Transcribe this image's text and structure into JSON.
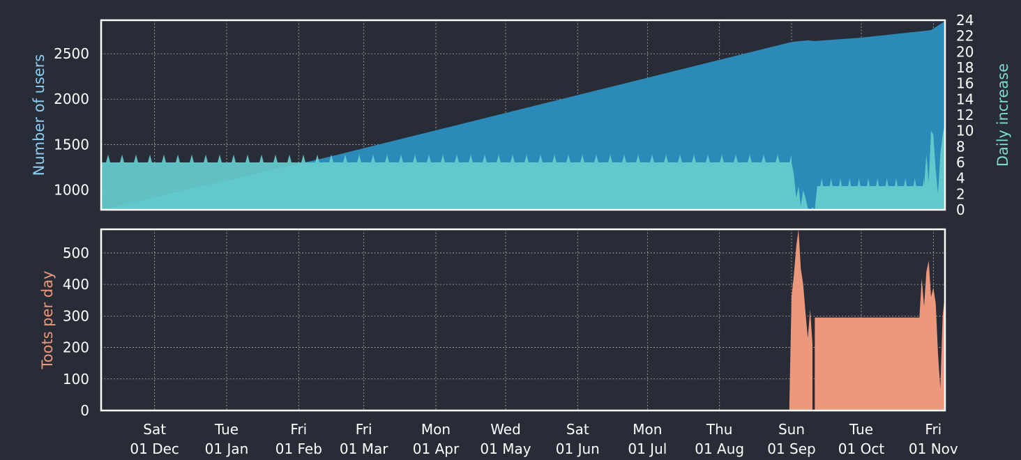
{
  "colors": {
    "background": "#282c37",
    "users": "#2b8ab8",
    "daily_increase": "#66cccc",
    "toots": "#ec987c",
    "users_axis_title": "#8dcdf2",
    "daily_axis_title": "#7ed8d2",
    "toots_axis_title": "#ec987c"
  },
  "chart_data": [
    {
      "type": "area",
      "name": "users-panel",
      "x_start": "2018-11-08",
      "x_end": "2019-11-06",
      "ylabel": "Number of users",
      "ylim": [
        780,
        2870
      ],
      "yticks": [
        1000,
        1500,
        2000,
        2500
      ],
      "y2label": "Daily increase",
      "y2lim": [
        0,
        24
      ],
      "y2ticks": [
        0,
        2,
        4,
        6,
        8,
        10,
        12,
        14,
        16,
        18,
        20,
        22,
        24
      ],
      "grid": true,
      "series": [
        {
          "name": "Number of users",
          "axis": "left",
          "points": [
            [
              "2018-11-08",
              780
            ],
            [
              "2019-02-15",
              1370
            ],
            [
              "2019-09-01",
              2630
            ],
            [
              "2019-09-08",
              2648
            ],
            [
              "2019-09-11",
              2640
            ],
            [
              "2019-10-01",
              2678
            ],
            [
              "2019-10-31",
              2760
            ],
            [
              "2019-11-06",
              2860
            ]
          ]
        },
        {
          "name": "Daily increase",
          "axis": "right",
          "base": 6,
          "peak": 7,
          "peak_period_days": 6,
          "points": [
            [
              "2019-09-01",
              6
            ],
            [
              "2019-09-02",
              4.5
            ],
            [
              "2019-09-03",
              1.5
            ],
            [
              "2019-09-04",
              3
            ],
            [
              "2019-09-05",
              0.5
            ],
            [
              "2019-09-06",
              2.5
            ],
            [
              "2019-09-07",
              1.5
            ],
            [
              "2019-09-08",
              0.2
            ],
            [
              "2019-09-09",
              0
            ],
            [
              "2019-09-10",
              0.3
            ],
            [
              "2019-09-11",
              0
            ],
            [
              "2019-09-12",
              3
            ],
            [
              "2019-10-28",
              3
            ],
            [
              "2019-10-29",
              7
            ],
            [
              "2019-10-30",
              3.5
            ],
            [
              "2019-10-31",
              10
            ],
            [
              "2019-11-01",
              9.5
            ],
            [
              "2019-11-02",
              5
            ],
            [
              "2019-11-03",
              2
            ],
            [
              "2019-11-04",
              7
            ],
            [
              "2019-11-05",
              9.5
            ],
            [
              "2019-11-06",
              11
            ]
          ],
          "flat_segments": [
            {
              "from": "2019-09-12",
              "to": "2019-10-28",
              "base": 3,
              "peak": 4,
              "peak_period_days": 4
            }
          ]
        }
      ]
    },
    {
      "type": "area",
      "name": "toots-panel",
      "x_start": "2018-11-08",
      "x_end": "2019-11-06",
      "ylabel": "Toots per day",
      "ylim": [
        0,
        575
      ],
      "yticks": [
        0,
        100,
        200,
        300,
        400,
        500
      ],
      "grid": true,
      "xticks": [
        {
          "date": "2018-12-01",
          "day": "Sat",
          "label": "01 Dec"
        },
        {
          "date": "2019-01-01",
          "day": "Tue",
          "label": "01 Jan"
        },
        {
          "date": "2019-02-01",
          "day": "Fri",
          "label": "01 Feb"
        },
        {
          "date": "2019-03-01",
          "day": "Fri",
          "label": "01 Mar"
        },
        {
          "date": "2019-04-01",
          "day": "Mon",
          "label": "01 Apr"
        },
        {
          "date": "2019-05-01",
          "day": "Wed",
          "label": "01 May"
        },
        {
          "date": "2019-06-01",
          "day": "Sat",
          "label": "01 Jun"
        },
        {
          "date": "2019-07-01",
          "day": "Mon",
          "label": "01 Jul"
        },
        {
          "date": "2019-08-01",
          "day": "Thu",
          "label": "01 Aug"
        },
        {
          "date": "2019-09-01",
          "day": "Sun",
          "label": "01 Sep"
        },
        {
          "date": "2019-10-01",
          "day": "Tue",
          "label": "01 Oct"
        },
        {
          "date": "2019-11-01",
          "day": "Fri",
          "label": "01 Nov"
        }
      ],
      "series": [
        {
          "name": "Toots per day",
          "points": [
            [
              "2019-08-31",
              0
            ],
            [
              "2019-09-01",
              360
            ],
            [
              "2019-09-02",
              430
            ],
            [
              "2019-09-03",
              520
            ],
            [
              "2019-09-04",
              575
            ],
            [
              "2019-09-05",
              450
            ],
            [
              "2019-09-06",
              400
            ],
            [
              "2019-09-07",
              310
            ],
            [
              "2019-09-08",
              230
            ],
            [
              "2019-09-09",
              320
            ],
            [
              "2019-09-10",
              210
            ],
            [
              "2019-09-10",
              0
            ],
            [
              "2019-09-11",
              0
            ],
            [
              "2019-09-11",
              295
            ],
            [
              "2019-10-26",
              295
            ],
            [
              "2019-10-27",
              420
            ],
            [
              "2019-10-28",
              330
            ],
            [
              "2019-10-29",
              440
            ],
            [
              "2019-10-30",
              475
            ],
            [
              "2019-10-31",
              360
            ],
            [
              "2019-11-01",
              390
            ],
            [
              "2019-11-02",
              340
            ],
            [
              "2019-11-03",
              180
            ],
            [
              "2019-11-04",
              70
            ],
            [
              "2019-11-05",
              300
            ],
            [
              "2019-11-06",
              370
            ]
          ]
        }
      ]
    }
  ]
}
